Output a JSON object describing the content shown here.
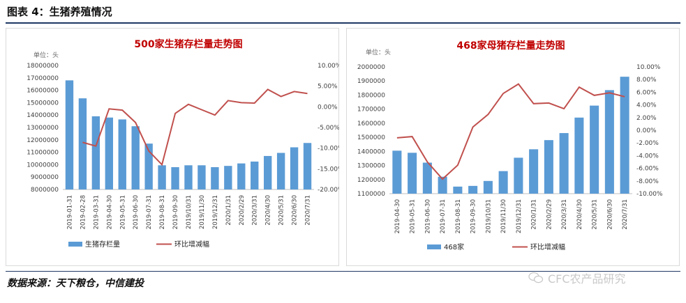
{
  "figure": {
    "title": "图表 4：生猪养殖情况",
    "source": "数据来源：天下粮仓，中信建投",
    "watermark_text": "CFC农产品研究",
    "watermark_icon": "wechat-icon"
  },
  "colors": {
    "bar": "#5b9bd5",
    "line": "#c0504d",
    "title": "#c00000",
    "rule": "#1f3864"
  },
  "chart_data": [
    {
      "type": "bar",
      "title": "500家生猪存栏量走势图",
      "unit_label": "单位：头",
      "categories": [
        "2019-01-31",
        "2019-02-28",
        "2019-03-31",
        "2019-04-30",
        "2019-05-31",
        "2019-06-30",
        "2019-07-31",
        "2019-08-31",
        "2019-09-30",
        "2019/10/31",
        "2019/11/30",
        "2019/12/31",
        "2020/1/31",
        "2020/2/29",
        "2020/3/31",
        "2020/4/30",
        "2020/5/31",
        "2020/6/30",
        "2020/7/31"
      ],
      "ylim": [
        8000000,
        18000000
      ],
      "y_ticks": [
        "8000000",
        "9000000",
        "10000000",
        "11000000",
        "12000000",
        "13000000",
        "14000000",
        "15000000",
        "16000000",
        "17000000",
        "18000000"
      ],
      "y2lim": [
        -20,
        10
      ],
      "y2_ticks": [
        "-20.00%",
        "-15.00%",
        "-10.00%",
        "-5.00%",
        "0.00%",
        "5.00%",
        "10.00%"
      ],
      "series": [
        {
          "name": "生猪存栏量",
          "kind": "bar",
          "axis": "left",
          "values": [
            16800000,
            15350000,
            13900000,
            13800000,
            13650000,
            13100000,
            11700000,
            9950000,
            9800000,
            9950000,
            9950000,
            9800000,
            9900000,
            10100000,
            10250000,
            10700000,
            10950000,
            11400000,
            11750000
          ]
        },
        {
          "name": "环比增减幅",
          "kind": "line",
          "axis": "right",
          "values": [
            null,
            -8.6,
            -9.5,
            -0.5,
            -0.8,
            -3.8,
            -10.7,
            -14.0,
            -1.6,
            0.6,
            -0.7,
            -2.0,
            1.5,
            1.0,
            0.9,
            4.2,
            2.5,
            3.7,
            3.2
          ]
        }
      ]
    },
    {
      "type": "bar",
      "title": "468家母猪存栏量走势图",
      "unit_label": "单位：头",
      "categories": [
        "2019-04-30",
        "2019-05-31",
        "2019-06-30",
        "2019-07-31",
        "2019-08-31",
        "2019-09-30",
        "2019/10/31",
        "2019/11/30",
        "2019/12/31",
        "2020/1/31",
        "2020/2/29",
        "2020/3/31",
        "2020/4/30",
        "2020/5/31",
        "2020/6/30",
        "2020/7/31"
      ],
      "ylim": [
        1100000,
        2000000
      ],
      "y_ticks": [
        "1100000",
        "1200000",
        "1300000",
        "1400000",
        "1500000",
        "1600000",
        "1700000",
        "1800000",
        "1900000",
        "2000000"
      ],
      "y2lim": [
        -10,
        10
      ],
      "y2_ticks": [
        "-10.00%",
        "-8.00%",
        "-6.00%",
        "-4.00%",
        "-2.00%",
        "0.00%",
        "2.00%",
        "4.00%",
        "6.00%",
        "8.00%",
        "10.00%"
      ],
      "series": [
        {
          "name": "468家",
          "kind": "bar",
          "axis": "left",
          "values": [
            1405000,
            1390000,
            1320000,
            1220000,
            1150000,
            1155000,
            1190000,
            1260000,
            1355000,
            1415000,
            1480000,
            1530000,
            1640000,
            1725000,
            1835000,
            1930000
          ]
        },
        {
          "name": "环比增减幅",
          "kind": "line",
          "axis": "right",
          "values": [
            -1.2,
            -1.0,
            -5.0,
            -7.7,
            -5.5,
            0.5,
            2.5,
            5.8,
            7.3,
            4.2,
            4.3,
            3.4,
            6.8,
            5.5,
            5.9,
            5.3
          ]
        }
      ]
    }
  ]
}
